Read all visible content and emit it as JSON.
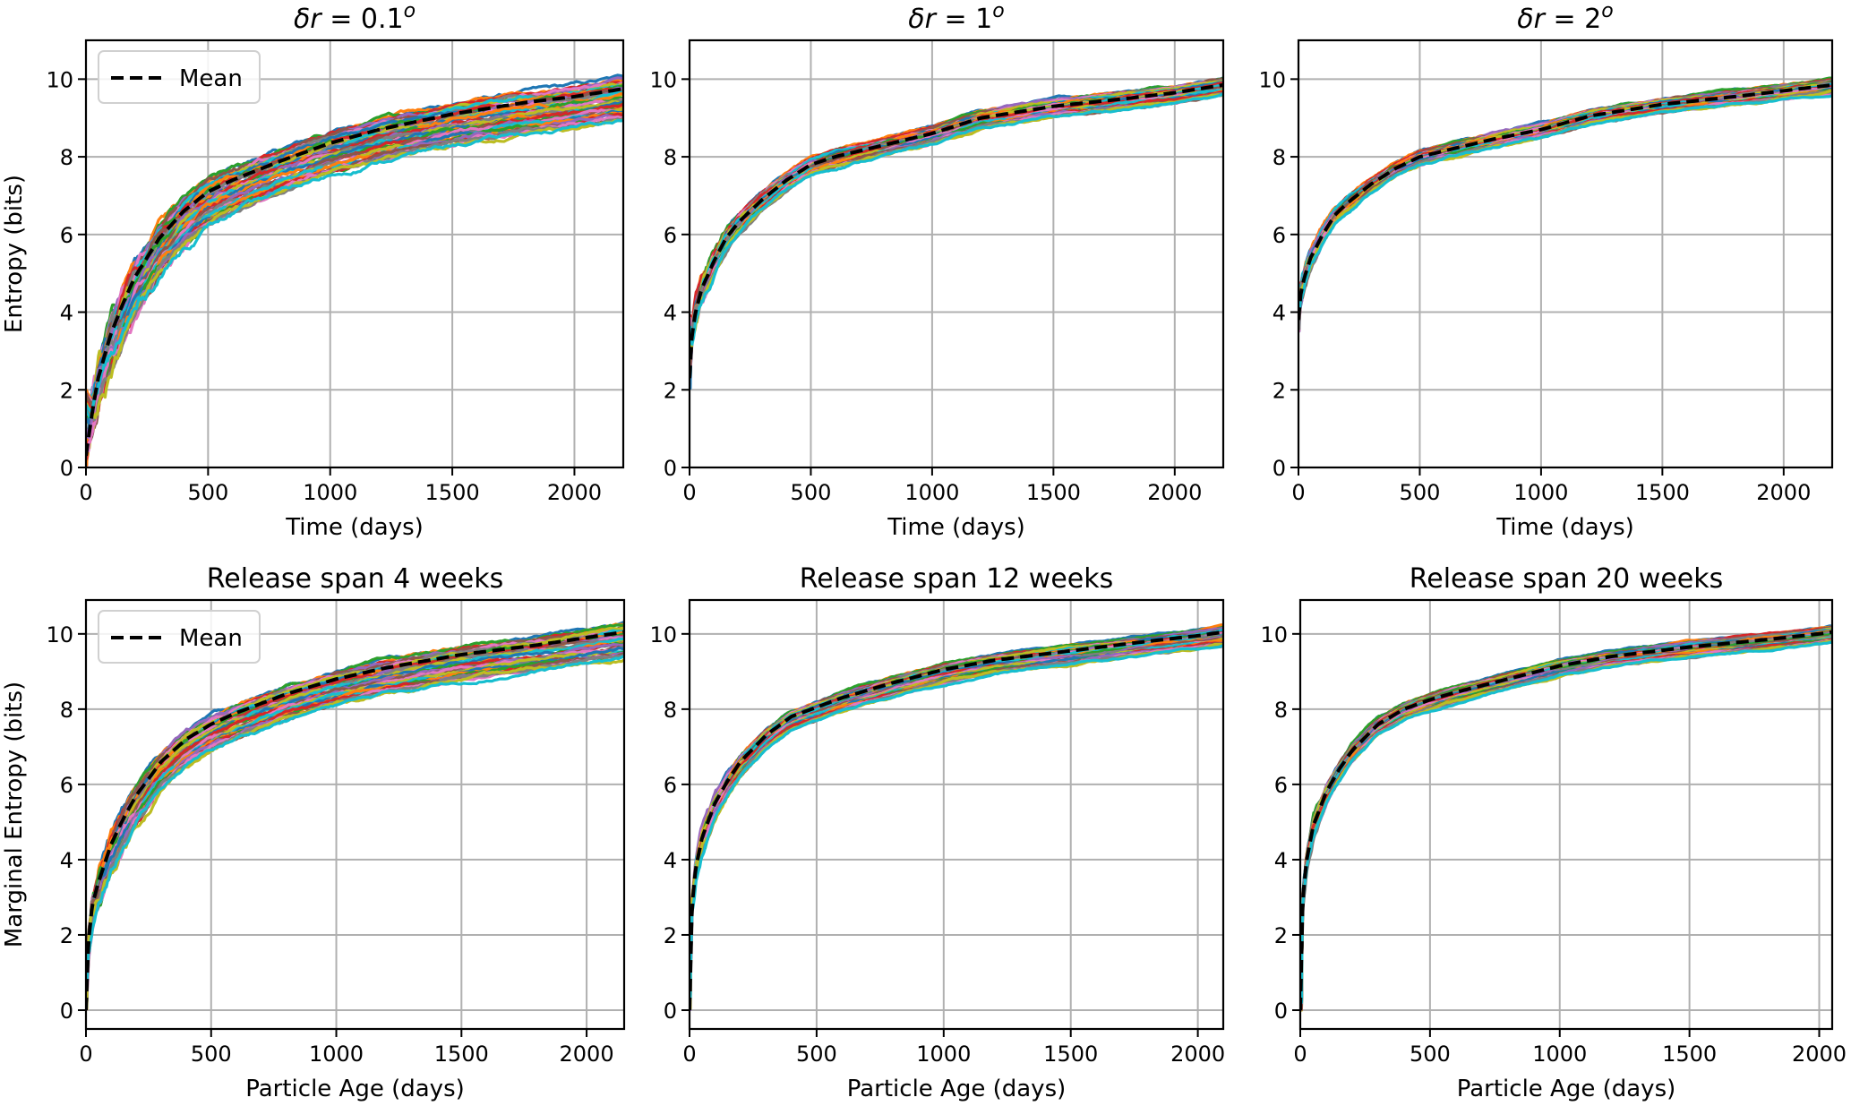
{
  "chart_data": [
    {
      "type": "line",
      "title": "δr = 0.1°",
      "title_parts": {
        "greek": "δ",
        "var": "r",
        "eq": " = 0.1",
        "sup": "o"
      },
      "xlabel": "Time (days)",
      "ylabel": "Entropy (bits)",
      "xlim": [
        0,
        2200
      ],
      "ylim": [
        0,
        11
      ],
      "xticks": [
        0,
        500,
        1000,
        1500,
        2000
      ],
      "yticks": [
        0,
        2,
        4,
        6,
        8,
        10
      ],
      "grid": true,
      "legend": {
        "position": "top-left",
        "entries": [
          {
            "label": "Mean",
            "style": "dashed",
            "color": "#000000"
          }
        ]
      },
      "n_members": 50,
      "spread": {
        "final_min": 8.4,
        "final_max": 10.2,
        "rise_rate": 0.0035,
        "start_min": 0.0,
        "start_max": 2.0,
        "noise": 0.12
      },
      "mean": {
        "x": [
          0,
          25,
          50,
          100,
          150,
          200,
          300,
          400,
          500,
          600,
          800,
          1000,
          1200,
          1500,
          1800,
          2000,
          2200
        ],
        "y": [
          0.3,
          1.4,
          2.3,
          3.4,
          4.2,
          4.9,
          5.9,
          6.6,
          7.1,
          7.4,
          7.9,
          8.35,
          8.7,
          9.1,
          9.4,
          9.55,
          9.75
        ]
      }
    },
    {
      "type": "line",
      "title": "δr = 1°",
      "title_parts": {
        "greek": "δ",
        "var": "r",
        "eq": " = 1",
        "sup": "o"
      },
      "xlabel": "Time (days)",
      "ylabel": "",
      "xlim": [
        0,
        2200
      ],
      "ylim": [
        0,
        11
      ],
      "xticks": [
        0,
        500,
        1000,
        1500,
        2000
      ],
      "yticks": [
        0,
        2,
        4,
        6,
        8,
        10
      ],
      "grid": true,
      "legend": null,
      "n_members": 40,
      "spread": {
        "final_min": 9.4,
        "final_max": 10.15,
        "rise_rate": 0.006,
        "start_min": 2.0,
        "start_max": 4.0,
        "noise": 0.07
      },
      "mean": {
        "x": [
          0,
          10,
          25,
          50,
          100,
          150,
          200,
          300,
          400,
          500,
          600,
          800,
          1000,
          1200,
          1500,
          1800,
          2000,
          2200
        ],
        "y": [
          2.3,
          3.4,
          4.0,
          4.6,
          5.3,
          5.9,
          6.3,
          6.9,
          7.4,
          7.8,
          8.0,
          8.3,
          8.6,
          9.0,
          9.3,
          9.5,
          9.65,
          9.85
        ]
      }
    },
    {
      "type": "line",
      "title": "δr = 2°",
      "title_parts": {
        "greek": "δ",
        "var": "r",
        "eq": " = 2",
        "sup": "o"
      },
      "xlabel": "Time (days)",
      "ylabel": "",
      "xlim": [
        0,
        2200
      ],
      "ylim": [
        0,
        11
      ],
      "xticks": [
        0,
        500,
        1000,
        1500,
        2000
      ],
      "yticks": [
        0,
        2,
        4,
        6,
        8,
        10
      ],
      "grid": true,
      "legend": null,
      "n_members": 40,
      "spread": {
        "final_min": 9.5,
        "final_max": 10.1,
        "rise_rate": 0.008,
        "start_min": 3.5,
        "start_max": 4.5,
        "noise": 0.06
      },
      "mean": {
        "x": [
          0,
          10,
          25,
          50,
          100,
          150,
          200,
          300,
          400,
          500,
          600,
          800,
          1000,
          1200,
          1500,
          1800,
          2000,
          2200
        ],
        "y": [
          3.8,
          4.5,
          4.9,
          5.4,
          6.0,
          6.5,
          6.8,
          7.3,
          7.7,
          8.0,
          8.15,
          8.45,
          8.7,
          9.05,
          9.35,
          9.55,
          9.7,
          9.85
        ]
      }
    },
    {
      "type": "line",
      "title": "Release span 4 weeks",
      "xlabel": "Particle Age (days)",
      "ylabel": "Marginal Entropy (bits)",
      "xlim": [
        0,
        2150
      ],
      "ylim": [
        -0.5,
        10.9
      ],
      "xticks": [
        0,
        500,
        1000,
        1500,
        2000
      ],
      "yticks": [
        0,
        2,
        4,
        6,
        8,
        10
      ],
      "grid": true,
      "legend": {
        "position": "top-left",
        "entries": [
          {
            "label": "Mean",
            "style": "dashed",
            "color": "#000000"
          }
        ]
      },
      "n_members": 40,
      "spread": {
        "final_min": 8.9,
        "final_max": 10.4,
        "rise_rate": 0.005,
        "start_min": 0.0,
        "start_max": 1.0,
        "noise": 0.1
      },
      "mean": {
        "x": [
          0,
          10,
          25,
          50,
          100,
          150,
          200,
          300,
          400,
          500,
          600,
          800,
          1000,
          1200,
          1500,
          1800,
          2000,
          2150
        ],
        "y": [
          0.0,
          1.8,
          2.8,
          3.4,
          4.4,
          5.1,
          5.7,
          6.6,
          7.2,
          7.6,
          7.9,
          8.4,
          8.8,
          9.1,
          9.45,
          9.7,
          9.9,
          10.05
        ]
      }
    },
    {
      "type": "line",
      "title": "Release span 12 weeks",
      "xlabel": "Particle Age (days)",
      "ylabel": "",
      "xlim": [
        0,
        2100
      ],
      "ylim": [
        -0.5,
        10.9
      ],
      "xticks": [
        0,
        500,
        1000,
        1500,
        2000
      ],
      "yticks": [
        0,
        2,
        4,
        6,
        8,
        10
      ],
      "grid": true,
      "legend": null,
      "n_members": 40,
      "spread": {
        "final_min": 9.45,
        "final_max": 10.3,
        "rise_rate": 0.007,
        "start_min": 0.0,
        "start_max": 0.5,
        "noise": 0.06
      },
      "mean": {
        "x": [
          0,
          10,
          25,
          50,
          100,
          150,
          200,
          300,
          400,
          500,
          600,
          800,
          1000,
          1200,
          1500,
          1800,
          2000,
          2100
        ],
        "y": [
          0.0,
          2.8,
          3.8,
          4.6,
          5.5,
          6.1,
          6.6,
          7.3,
          7.8,
          8.05,
          8.3,
          8.7,
          9.05,
          9.3,
          9.55,
          9.8,
          9.95,
          10.05
        ]
      }
    },
    {
      "type": "line",
      "title": "Release span 20 weeks",
      "xlabel": "Particle Age (days)",
      "ylabel": "",
      "xlim": [
        0,
        2050
      ],
      "ylim": [
        -0.5,
        10.9
      ],
      "xticks": [
        0,
        500,
        1000,
        1500,
        2000
      ],
      "yticks": [
        0,
        2,
        4,
        6,
        8,
        10
      ],
      "grid": true,
      "legend": null,
      "n_members": 40,
      "spread": {
        "final_min": 9.6,
        "final_max": 10.3,
        "rise_rate": 0.008,
        "start_min": 0.0,
        "start_max": 0.5,
        "noise": 0.05
      },
      "mean": {
        "x": [
          0,
          10,
          25,
          50,
          100,
          150,
          200,
          300,
          400,
          500,
          600,
          800,
          1000,
          1200,
          1500,
          1800,
          2000,
          2050
        ],
        "y": [
          0.0,
          3.0,
          4.0,
          4.9,
          5.8,
          6.4,
          6.9,
          7.6,
          8.0,
          8.25,
          8.45,
          8.8,
          9.15,
          9.4,
          9.65,
          9.85,
          10.0,
          10.05
        ]
      }
    }
  ],
  "palette": [
    "#1f77b4",
    "#ff7f0e",
    "#2ca02c",
    "#d62728",
    "#9467bd",
    "#8c564b",
    "#e377c2",
    "#7f7f7f",
    "#bcbd22",
    "#17becf"
  ],
  "mean_color": "#000000",
  "grid_color": "#b0b0b0"
}
